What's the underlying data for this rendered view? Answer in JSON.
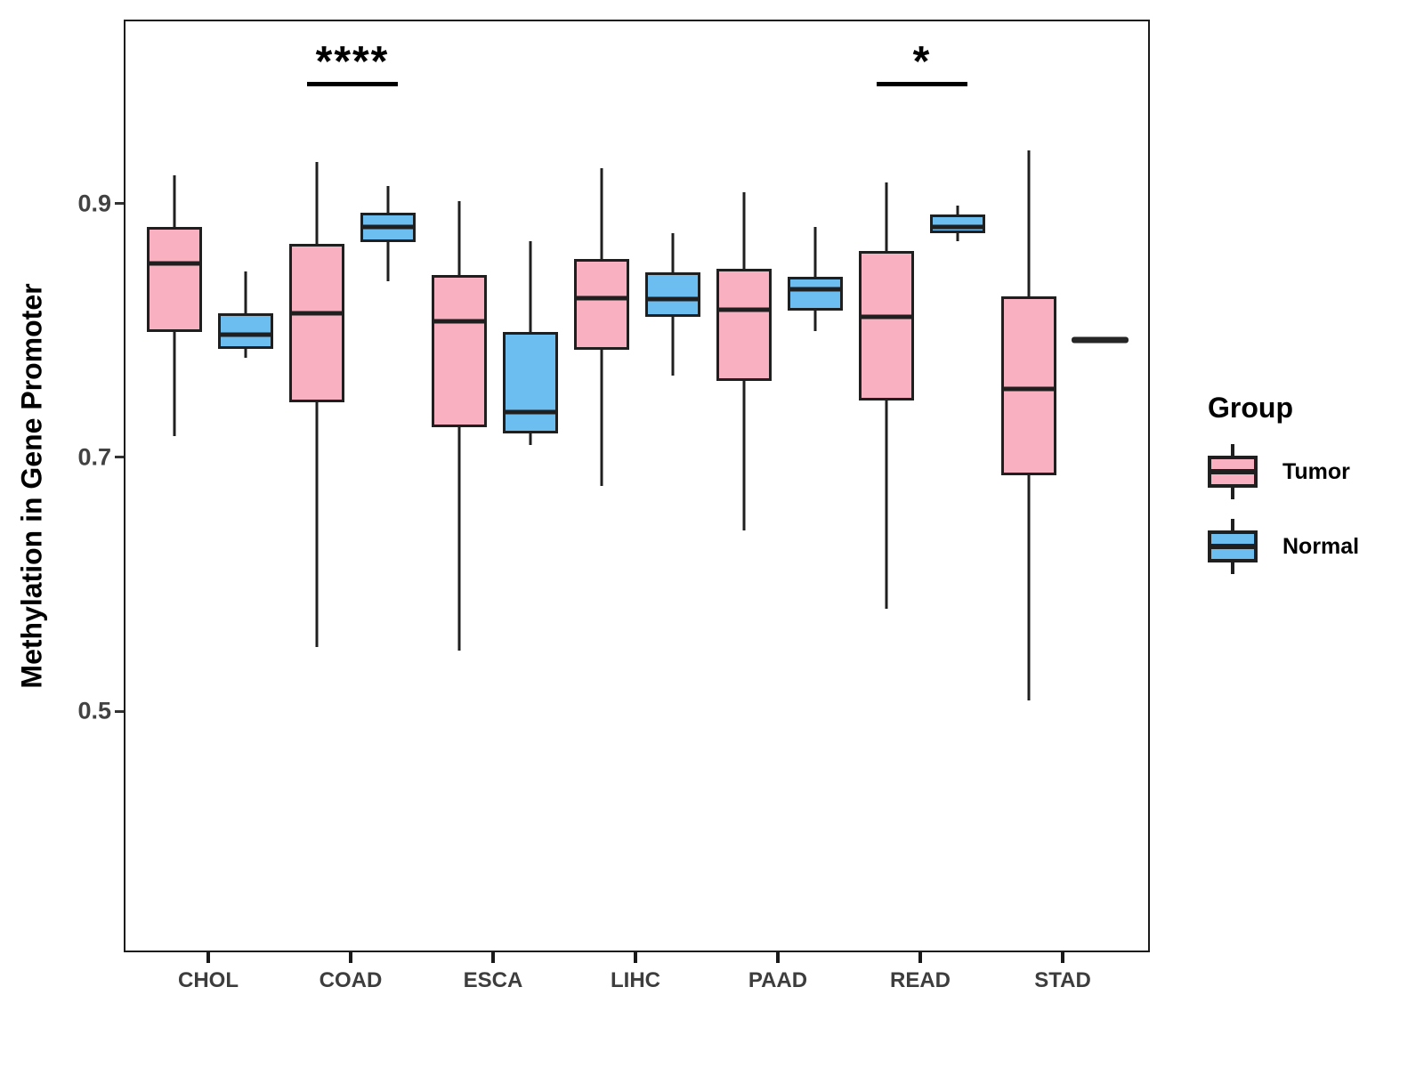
{
  "figure": {
    "legend": {
      "title": "Group",
      "items": [
        {
          "label": "Tumor",
          "color": "#F9B1C2"
        },
        {
          "label": "Normal",
          "color": "#6CBEF0"
        }
      ]
    }
  },
  "chart_data": {
    "type": "boxplot",
    "title": "",
    "xlabel": "",
    "ylabel": "Methylation in Gene Promoter",
    "categories": [
      "CHOL",
      "COAD",
      "ESCA",
      "LIHC",
      "PAAD",
      "READ",
      "STAD"
    ],
    "groups": [
      "Tumor",
      "Normal"
    ],
    "group_colors": {
      "Tumor": "#F9B1C2",
      "Normal": "#6CBEF0"
    },
    "y_ticks": [
      0.9,
      0.7,
      0.5
    ],
    "ylim": [
      0.31,
      1.045
    ],
    "grid": false,
    "legend_position": "right",
    "series": [
      {
        "name": "Tumor",
        "boxes": [
          {
            "category": "CHOL",
            "min": 0.718,
            "q1": 0.8,
            "median": 0.854,
            "q3": 0.883,
            "max": 0.924
          },
          {
            "category": "COAD",
            "min": 0.552,
            "q1": 0.745,
            "median": 0.815,
            "q3": 0.87,
            "max": 0.934
          },
          {
            "category": "ESCA",
            "min": 0.549,
            "q1": 0.725,
            "median": 0.809,
            "q3": 0.845,
            "max": 0.903
          },
          {
            "category": "LIHC",
            "min": 0.679,
            "q1": 0.786,
            "median": 0.827,
            "q3": 0.858,
            "max": 0.929
          },
          {
            "category": "PAAD",
            "min": 0.644,
            "q1": 0.762,
            "median": 0.818,
            "q3": 0.85,
            "max": 0.91
          },
          {
            "category": "READ",
            "min": 0.582,
            "q1": 0.746,
            "median": 0.812,
            "q3": 0.864,
            "max": 0.918
          },
          {
            "category": "STAD",
            "min": 0.51,
            "q1": 0.687,
            "median": 0.755,
            "q3": 0.828,
            "max": 0.943
          }
        ]
      },
      {
        "name": "Normal",
        "boxes": [
          {
            "category": "CHOL",
            "min": 0.78,
            "q1": 0.787,
            "median": 0.798,
            "q3": 0.815,
            "max": 0.848
          },
          {
            "category": "COAD",
            "min": 0.84,
            "q1": 0.871,
            "median": 0.883,
            "q3": 0.894,
            "max": 0.915
          },
          {
            "category": "ESCA",
            "min": 0.711,
            "q1": 0.72,
            "median": 0.737,
            "q3": 0.8,
            "max": 0.872
          },
          {
            "category": "LIHC",
            "min": 0.766,
            "q1": 0.812,
            "median": 0.826,
            "q3": 0.847,
            "max": 0.878
          },
          {
            "category": "PAAD",
            "min": 0.801,
            "q1": 0.817,
            "median": 0.834,
            "q3": 0.844,
            "max": 0.883
          },
          {
            "category": "READ",
            "min": 0.872,
            "q1": 0.878,
            "median": 0.883,
            "q3": 0.893,
            "max": 0.9
          },
          {
            "category": "STAD",
            "min": 0.794,
            "q1": 0.794,
            "median": 0.794,
            "q3": 0.794,
            "max": 0.794,
            "flat": true
          }
        ]
      }
    ],
    "annotations": [
      {
        "category": "COAD",
        "label": "****"
      },
      {
        "category": "READ",
        "label": "*"
      }
    ]
  }
}
